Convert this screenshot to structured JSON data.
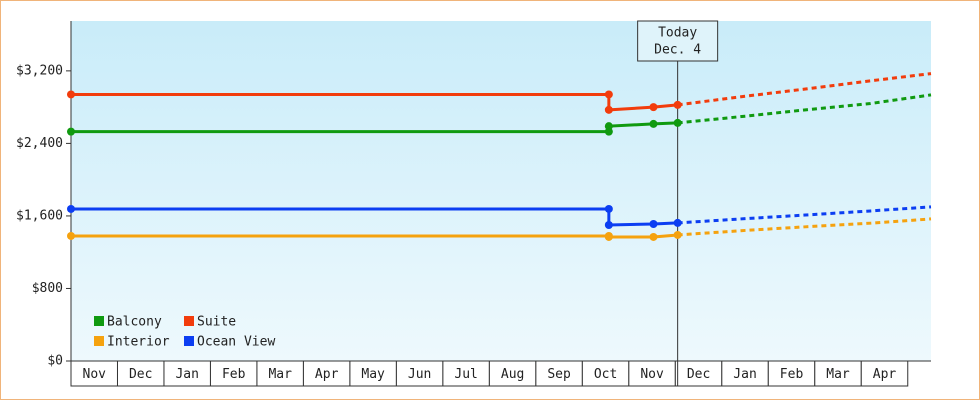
{
  "chart_data": {
    "type": "line",
    "categories": [
      "Nov",
      "Dec",
      "Jan",
      "Feb",
      "Mar",
      "Apr",
      "May",
      "Jun",
      "Jul",
      "Aug",
      "Sep",
      "Oct",
      "Nov",
      "Dec",
      "Jan",
      "Feb",
      "Mar",
      "Apr"
    ],
    "xlim": [
      0,
      18.5
    ],
    "ylim": [
      0,
      3750
    ],
    "yticks": [
      {
        "value": 0,
        "label": "$0"
      },
      {
        "value": 800,
        "label": "$800"
      },
      {
        "value": 1600,
        "label": "$1,600"
      },
      {
        "value": 2400,
        "label": "$2,400"
      },
      {
        "value": 3200,
        "label": "$3,200"
      }
    ],
    "annotation": {
      "x": 13.05,
      "lines": [
        "Today",
        "Dec. 4"
      ]
    },
    "legend": "bottom-left",
    "series": [
      {
        "name": "Balcony",
        "color": "#109a10",
        "x": [
          0,
          11.57,
          11.57,
          12.53,
          13.05
        ],
        "values": [
          2530,
          2530,
          2590,
          2615,
          2626
        ],
        "forecast_x": [
          13.05,
          14.5,
          15.8,
          17.2,
          18.5
        ],
        "forecast_values": [
          2626,
          2700,
          2770,
          2840,
          2935
        ]
      },
      {
        "name": "Suite",
        "color": "#f23c0c",
        "x": [
          0,
          11.57,
          11.57,
          12.53,
          13.05
        ],
        "values": [
          2940,
          2940,
          2770,
          2800,
          2825
        ],
        "forecast_x": [
          13.05,
          14.5,
          15.8,
          17.2,
          18.5
        ],
        "forecast_values": [
          2825,
          2920,
          3000,
          3090,
          3170
        ]
      },
      {
        "name": "Interior",
        "color": "#f5a20f",
        "x": [
          0,
          11.57,
          11.57,
          12.53,
          13.05
        ],
        "values": [
          1379,
          1379,
          1368,
          1368,
          1390
        ],
        "forecast_x": [
          13.05,
          14.5,
          15.8,
          17.2,
          18.5
        ],
        "forecast_values": [
          1390,
          1440,
          1480,
          1520,
          1567
        ]
      },
      {
        "name": "Ocean View",
        "color": "#0c3ef2",
        "x": [
          0,
          11.57,
          11.57,
          12.53,
          13.05
        ],
        "values": [
          1677,
          1677,
          1500,
          1511,
          1523
        ],
        "forecast_x": [
          13.05,
          14.5,
          15.8,
          17.2,
          18.5
        ],
        "forecast_values": [
          1523,
          1570,
          1610,
          1655,
          1700
        ]
      }
    ]
  }
}
